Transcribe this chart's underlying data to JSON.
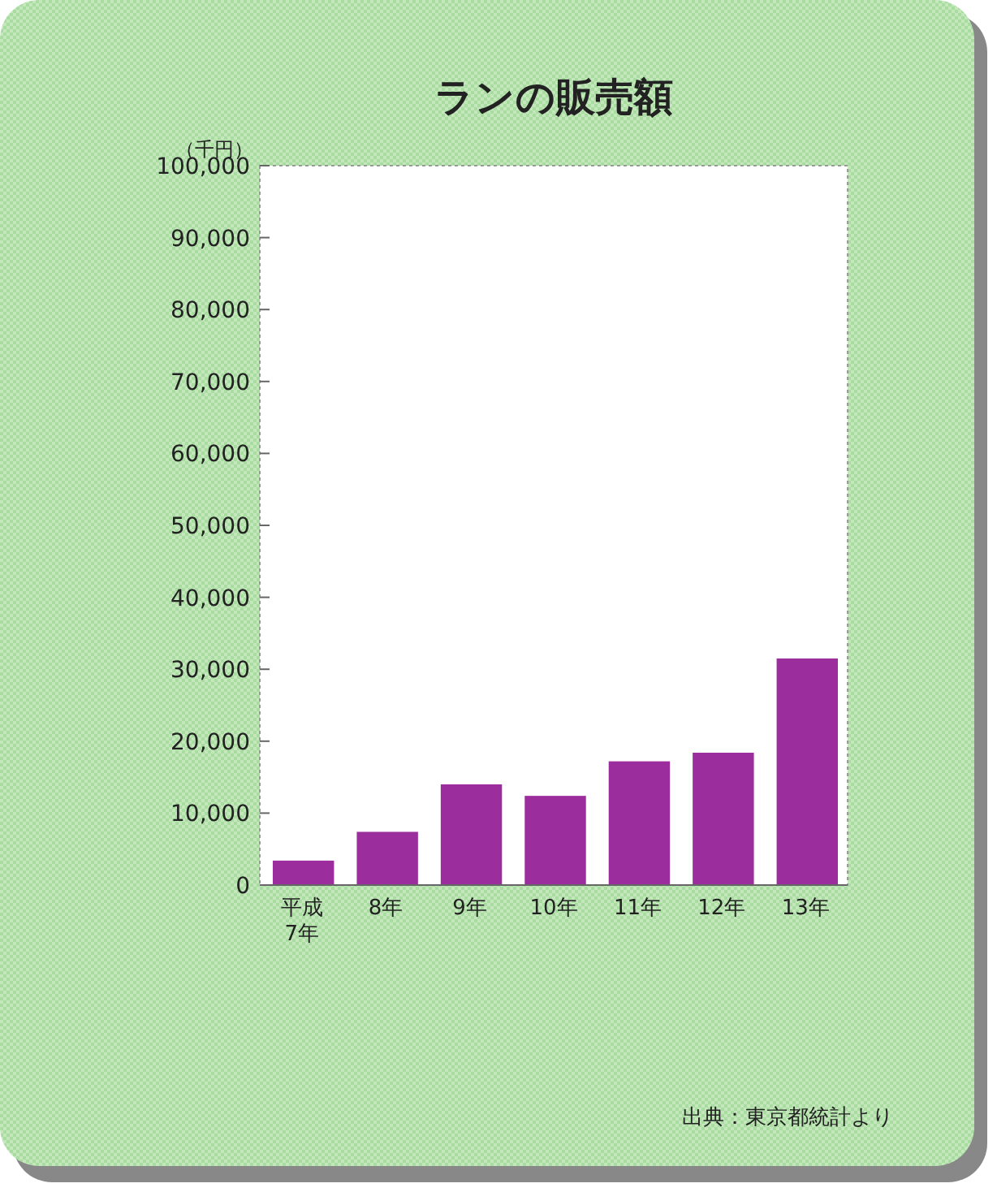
{
  "chart_data": {
    "type": "bar",
    "title": "ランの販売額",
    "ylabel": "（千円）",
    "categories": [
      "平成7年",
      "8年",
      "9年",
      "10年",
      "11年",
      "12年",
      "13年"
    ],
    "values": [
      3400,
      7400,
      14000,
      12400,
      17200,
      18400,
      31500
    ],
    "color": "#9c2d9c",
    "ylim": [
      0,
      100000
    ],
    "yticks": [
      {
        "value": 0,
        "label": "0"
      },
      {
        "value": 10000,
        "label": "10,000"
      },
      {
        "value": 20000,
        "label": "20,000"
      },
      {
        "value": 30000,
        "label": "30,000"
      },
      {
        "value": 40000,
        "label": "40,000"
      },
      {
        "value": 50000,
        "label": "50,000"
      },
      {
        "value": 60000,
        "label": "60,000"
      },
      {
        "value": 70000,
        "label": "70,000"
      },
      {
        "value": 80000,
        "label": "80,000"
      },
      {
        "value": 90000,
        "label": "90,000"
      },
      {
        "value": 100000,
        "label": "100,000"
      }
    ],
    "annotations": [
      "出典：東京都統計より"
    ]
  }
}
